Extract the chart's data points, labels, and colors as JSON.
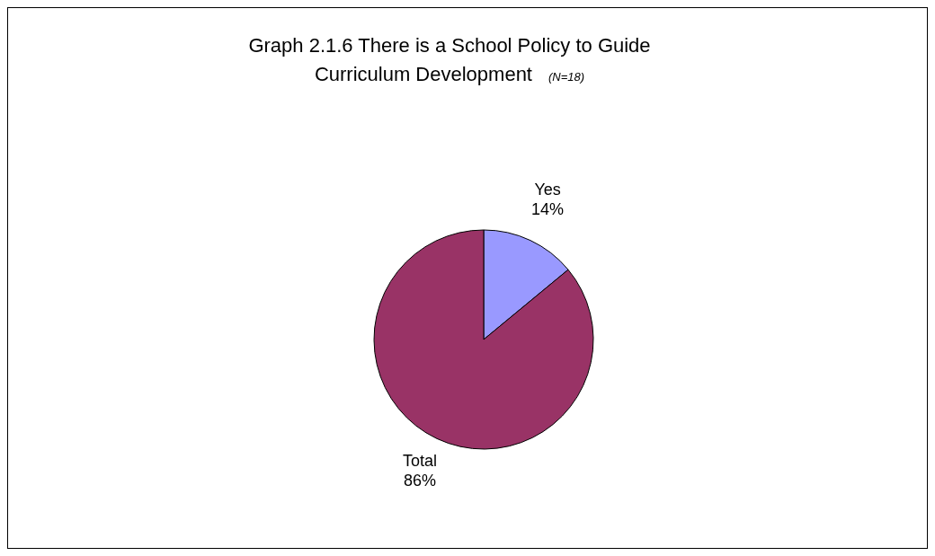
{
  "chart_data": {
    "type": "pie",
    "title": "Graph 2.1.6 There is a School Policy to Guide Curriculum Development",
    "subtitle": "(N=18)",
    "categories": [
      "Yes",
      "Total"
    ],
    "values": [
      14,
      86
    ],
    "colors": [
      "#9999ff",
      "#993366"
    ],
    "value_labels": [
      "14%",
      "86%"
    ]
  }
}
